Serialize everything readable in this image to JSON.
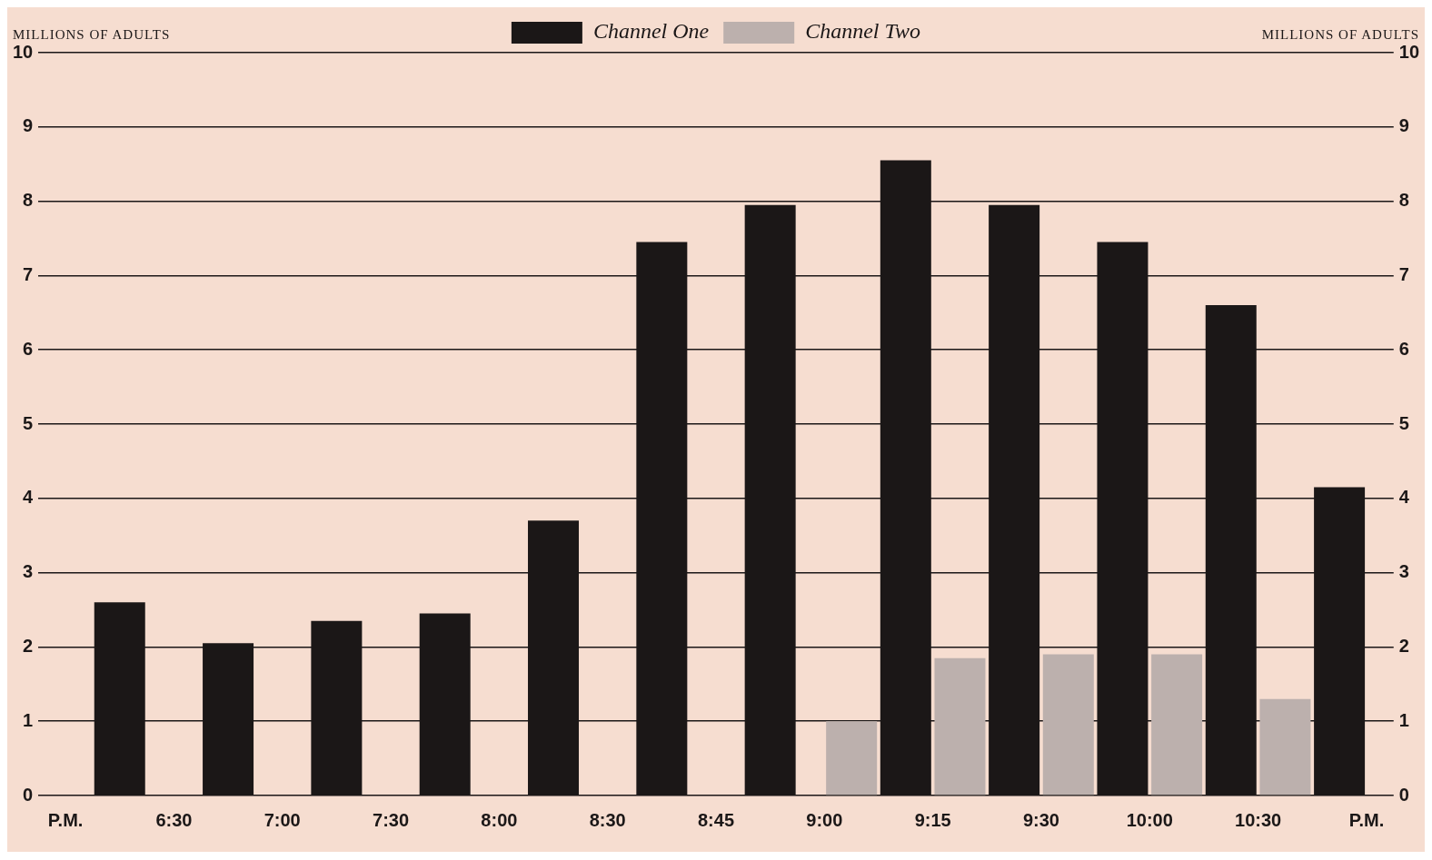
{
  "chart_data": {
    "type": "bar",
    "ylabel": "MILLIONS OF ADULTS",
    "y2label": "MILLIONS OF ADULTS",
    "categories": [
      "P.M.",
      null,
      "6:30",
      null,
      "7:00",
      null,
      "7:30",
      null,
      "8:00",
      null,
      "8:30",
      null,
      "8:45",
      null,
      "9:00",
      null,
      "9:15",
      null,
      "9:30",
      null,
      "10:00",
      null,
      "10:30",
      null,
      "P.M."
    ],
    "series": [
      {
        "name": "Channel Two",
        "color": "#bcb0ad",
        "values": [
          null,
          null,
          null,
          null,
          null,
          null,
          null,
          null,
          null,
          null,
          null,
          null,
          null,
          null,
          null,
          1.0,
          null,
          1.85,
          null,
          1.9,
          null,
          1.9,
          null,
          1.3,
          null
        ]
      },
      {
        "name": "Channel One",
        "color": "#1b1717",
        "values": [
          null,
          2.6,
          null,
          2.05,
          null,
          2.35,
          null,
          2.45,
          null,
          3.7,
          null,
          7.45,
          null,
          7.95,
          null,
          8.55,
          null,
          7.95,
          null,
          7.45,
          null,
          6.6,
          null,
          4.15,
          null
        ]
      }
    ],
    "ylim": [
      0,
      10
    ],
    "yticks": [
      0,
      1,
      2,
      3,
      4,
      5,
      6,
      7,
      8,
      9,
      10
    ],
    "y2lim": [
      0,
      10
    ],
    "y2ticks": [
      0,
      1,
      2,
      3,
      4,
      5,
      6,
      7,
      8,
      9,
      10
    ],
    "grid": "y",
    "legend": "top"
  }
}
